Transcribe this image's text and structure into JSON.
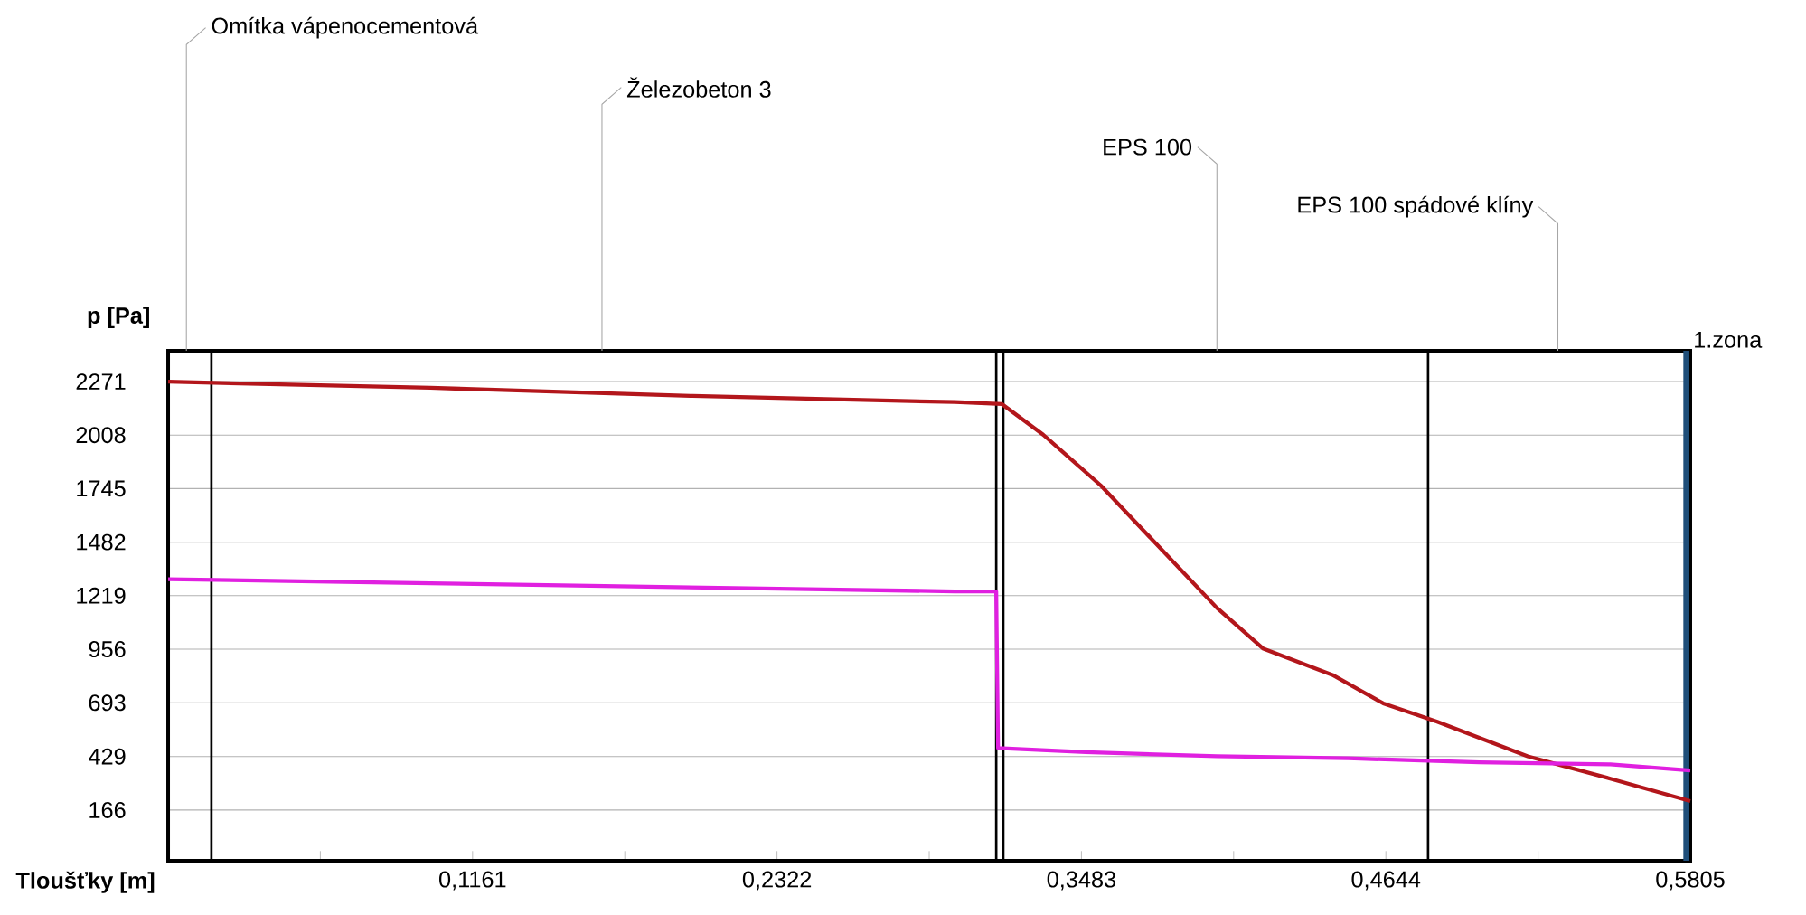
{
  "chart_data": {
    "type": "line",
    "xlabel": "Tloušťky [m]",
    "ylabel": "p [Pa]",
    "xlim": [
      0,
      0.5805
    ],
    "ylim": [
      -83,
      2422
    ],
    "xticks": [
      {
        "value": 0.05805,
        "label": null
      },
      {
        "value": 0.1161,
        "label": "0,1161"
      },
      {
        "value": 0.17415,
        "label": null
      },
      {
        "value": 0.2322,
        "label": "0,2322"
      },
      {
        "value": 0.29025,
        "label": null
      },
      {
        "value": 0.3483,
        "label": "0,3483"
      },
      {
        "value": 0.40635,
        "label": null
      },
      {
        "value": 0.4644,
        "label": "0,4644"
      },
      {
        "value": 0.52245,
        "label": null
      },
      {
        "value": 0.5805,
        "label": "0,5805"
      }
    ],
    "yticks": [
      166,
      429,
      693,
      956,
      1219,
      1482,
      1745,
      2008,
      2271
    ],
    "grid": "y",
    "marker": "none",
    "line_style": "solid",
    "series": [
      {
        "color": "#b3161b",
        "x": [
          0,
          0.1,
          0.2,
          0.3,
          0.318,
          0.3337,
          0.3557,
          0.3999,
          0.4175,
          0.444,
          0.4634,
          0.484,
          0.5185,
          0.55,
          0.5805
        ],
        "values": [
          2270,
          2240,
          2200,
          2170,
          2160,
          2010,
          1760,
          1160,
          960,
          830,
          690,
          600,
          430,
          320,
          210
        ]
      },
      {
        "color": "#e020e0",
        "x": [
          0,
          0.05,
          0.1,
          0.15,
          0.2,
          0.25,
          0.3,
          0.3158,
          0.3165,
          0.35,
          0.4,
          0.45,
          0.5,
          0.55,
          0.5805
        ],
        "values": [
          1300,
          1290,
          1280,
          1270,
          1260,
          1250,
          1240,
          1240,
          470,
          450,
          430,
          420,
          400,
          390,
          360
        ]
      }
    ],
    "ref_lines": [
      {
        "axis": "x",
        "value": 0.0165,
        "color": "#000000"
      },
      {
        "axis": "x",
        "value": 0.3158,
        "color": "#000000"
      },
      {
        "axis": "x",
        "value": 0.3185,
        "color": "#000000"
      },
      {
        "axis": "x",
        "value": 0.4805,
        "color": "#000000"
      },
      {
        "axis": "x",
        "value": 0.579,
        "color": "#1f4e79"
      }
    ],
    "annotations": [
      "Omítka vápenocementová",
      "Železobeton 3",
      "EPS 100",
      "EPS 100 spádové klíny",
      "1.zona"
    ]
  }
}
